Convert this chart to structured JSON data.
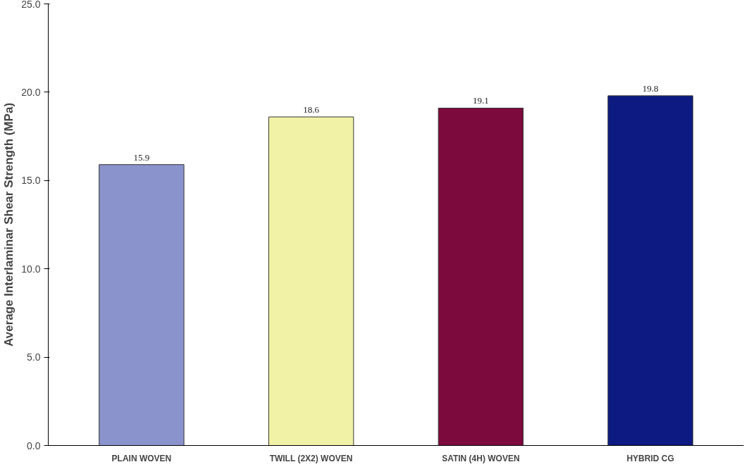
{
  "chart_data": {
    "type": "bar",
    "ylabel": "Average Interlaminar Shear Strength (MPa)",
    "categories": [
      "PLAIN WOVEN",
      "TWILL (2X2) WOVEN",
      "SATIN (4H) WOVEN",
      "HYBRID CG"
    ],
    "values": [
      15.9,
      18.6,
      19.1,
      19.8
    ],
    "colors": [
      "#8a93cc",
      "#f2f2a6",
      "#7c0a3c",
      "#0c1a82"
    ],
    "data_labels": true,
    "ylim": [
      0,
      25
    ],
    "yticks": [
      {
        "value": 0,
        "label": "0.0"
      },
      {
        "value": 5,
        "label": "5.0"
      },
      {
        "value": 10,
        "label": "10.0"
      },
      {
        "value": 15,
        "label": "15.0"
      },
      {
        "value": 20,
        "label": "20.0"
      },
      {
        "value": 25,
        "label": "25.0"
      }
    ],
    "grid": false
  }
}
